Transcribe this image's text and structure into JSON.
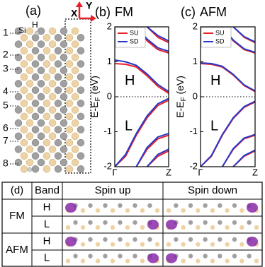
{
  "panel_a": {
    "label": "(a)",
    "atom_si": "Si",
    "atom_h": "H",
    "axis_x": "X",
    "axis_y": "Y",
    "row_labels": [
      "1",
      "2",
      "3",
      "4",
      "5",
      "6",
      "7",
      "8"
    ]
  },
  "chart_data": [
    {
      "type": "line",
      "panel": "(b)",
      "title": "FM",
      "ylabel": "E-E",
      "ylabel_sub": "F",
      "ylabel_unit": " (eV)",
      "x": [
        0,
        0.2,
        0.4,
        0.6,
        0.8,
        1
      ],
      "xlim": [
        0,
        1
      ],
      "xticks": [
        {
          "value": 0,
          "label": "Γ"
        },
        {
          "value": 1,
          "label": "Z"
        }
      ],
      "ylim": [
        -2,
        2
      ],
      "yticks": [
        -2,
        -1,
        0,
        1,
        2
      ],
      "zero_line": true,
      "annotations": [
        "H",
        "L"
      ],
      "legend": "upper left",
      "series": [
        {
          "name": "SU",
          "color": "#e8202a",
          "bands": [
            [
              0.95,
              0.93,
              0.85,
              0.6,
              0.3,
              0.1
            ],
            [
              -2.0,
              -1.7,
              -1.1,
              -0.6,
              -0.25,
              -0.1
            ],
            [
              null,
              null,
              2.0,
              1.6,
              1.35,
              1.25
            ],
            [
              null,
              null,
              null,
              2.0,
              1.7,
              1.55
            ],
            [
              null,
              null,
              -2.0,
              -1.5,
              -1.2,
              -1.1
            ],
            [
              null,
              null,
              null,
              -2.0,
              -1.7,
              -1.55
            ]
          ]
        },
        {
          "name": "SD",
          "color": "#2838c8",
          "bands": [
            [
              1.05,
              1.0,
              0.9,
              0.65,
              0.35,
              0.15
            ],
            [
              -2.0,
              -1.65,
              -1.05,
              -0.55,
              -0.2,
              -0.05
            ],
            [
              null,
              null,
              2.0,
              1.65,
              1.4,
              1.3
            ],
            [
              null,
              null,
              null,
              2.0,
              1.75,
              1.6
            ],
            [
              null,
              null,
              -2.0,
              -1.45,
              -1.15,
              -1.05
            ],
            [
              null,
              null,
              null,
              -2.0,
              -1.65,
              -1.5
            ]
          ]
        }
      ]
    },
    {
      "type": "line",
      "panel": "(c)",
      "title": "AFM",
      "ylabel": "E-E",
      "ylabel_sub": "F",
      "ylabel_unit": " (eV)",
      "x": [
        0,
        0.2,
        0.4,
        0.6,
        0.8,
        1
      ],
      "xlim": [
        0,
        1
      ],
      "xticks": [
        {
          "value": 0,
          "label": "Γ"
        },
        {
          "value": 1,
          "label": "Z"
        }
      ],
      "ylim": [
        -2,
        2
      ],
      "yticks": [
        -2,
        -1,
        0,
        1,
        2
      ],
      "zero_line": true,
      "annotations": [
        "H",
        "L"
      ],
      "legend": "upper left",
      "series": [
        {
          "name": "SU",
          "color": "#e8202a",
          "bands": [
            [
              0.95,
              0.93,
              0.85,
              0.62,
              0.32,
              0.15
            ],
            [
              -2.0,
              -1.7,
              -1.1,
              -0.62,
              -0.3,
              -0.15
            ],
            [
              null,
              null,
              2.0,
              1.6,
              1.35,
              1.25
            ],
            [
              null,
              null,
              null,
              2.0,
              1.7,
              1.55
            ],
            [
              null,
              null,
              -2.0,
              -1.5,
              -1.2,
              -1.1
            ],
            [
              null,
              null,
              null,
              -2.0,
              -1.7,
              -1.55
            ]
          ]
        },
        {
          "name": "SD",
          "color": "#2838c8",
          "bands": [
            [
              0.97,
              0.95,
              0.87,
              0.64,
              0.34,
              0.17
            ],
            [
              -2.0,
              -1.68,
              -1.08,
              -0.6,
              -0.28,
              -0.13
            ],
            [
              null,
              null,
              2.0,
              1.62,
              1.37,
              1.27
            ],
            [
              null,
              null,
              null,
              2.0,
              1.72,
              1.57
            ],
            [
              null,
              null,
              -2.0,
              -1.48,
              -1.18,
              -1.08
            ],
            [
              null,
              null,
              null,
              -2.0,
              -1.68,
              -1.53
            ]
          ]
        }
      ]
    }
  ],
  "table": {
    "header": [
      "(d)",
      "Band",
      "Spin up",
      "Spin down"
    ],
    "groups": [
      {
        "label": "FM",
        "bands": [
          "H",
          "L"
        ]
      },
      {
        "label": "AFM",
        "bands": [
          "H",
          "L"
        ]
      }
    ]
  }
}
